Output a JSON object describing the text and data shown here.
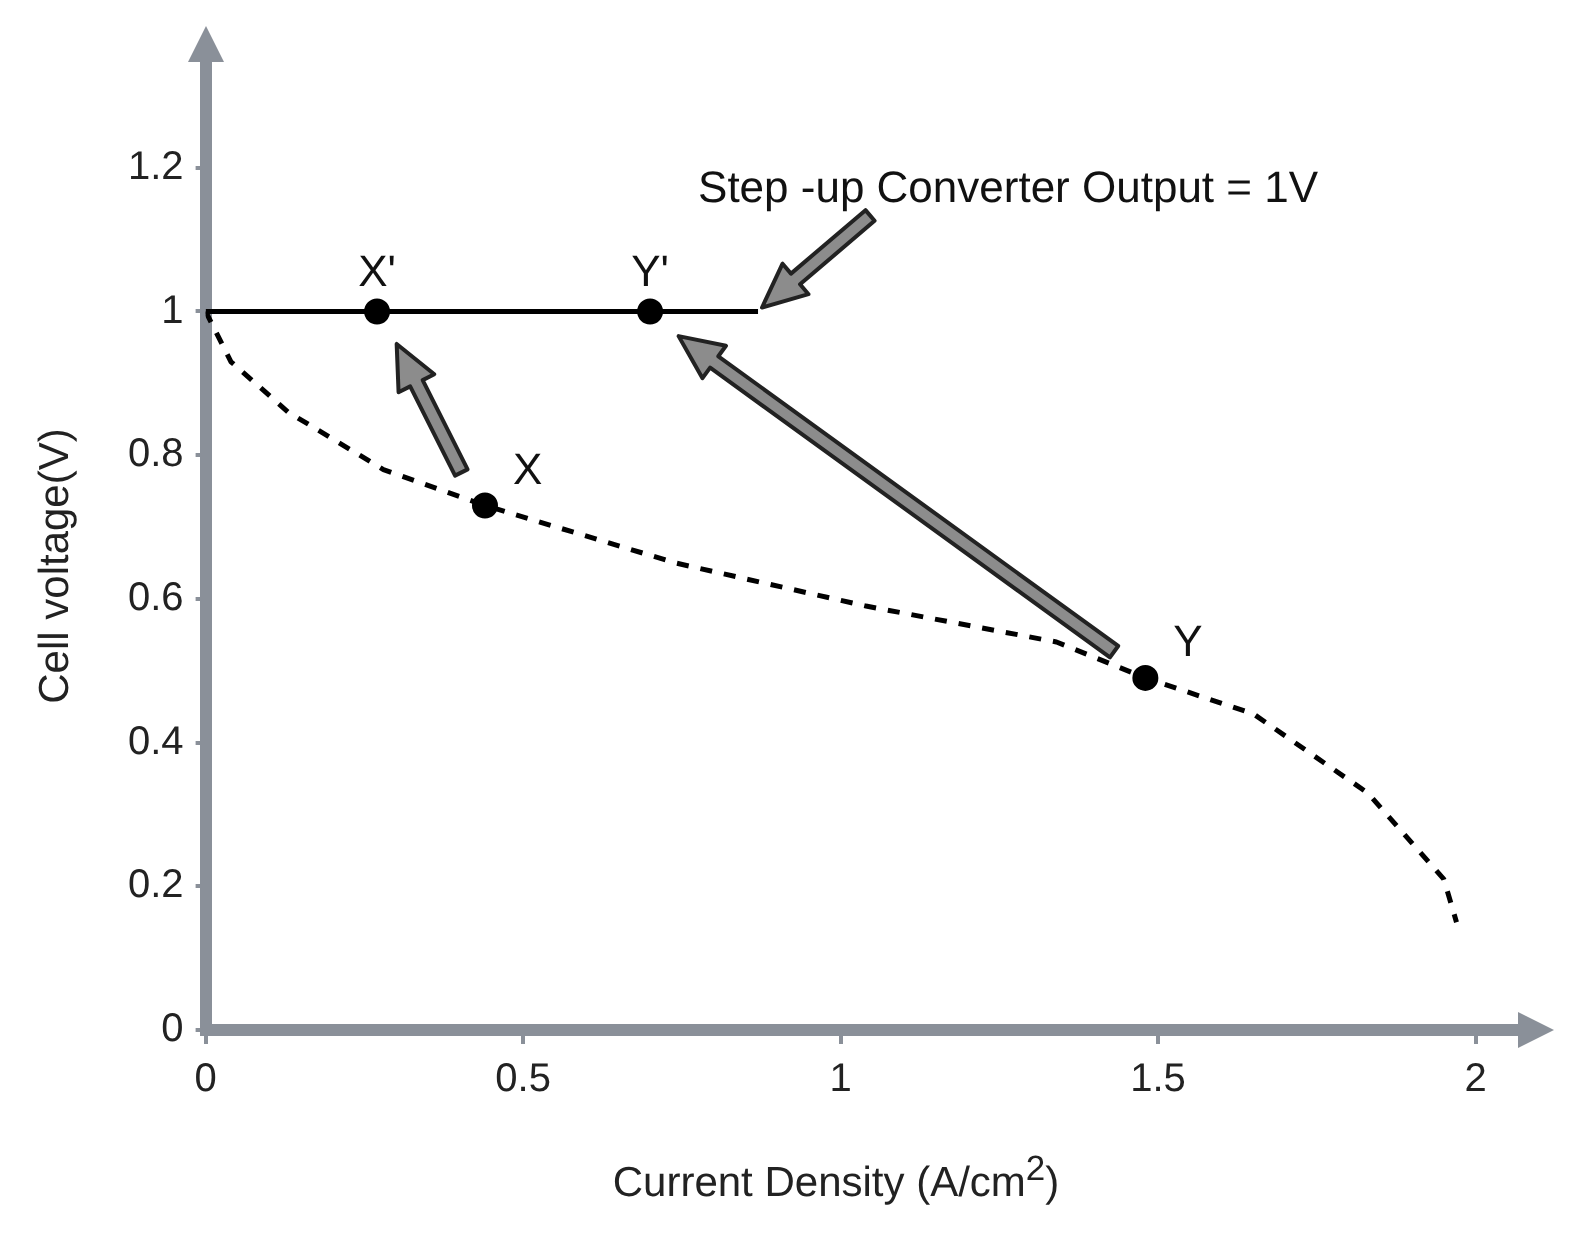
{
  "chart_data": {
    "type": "line",
    "xlabel": "Current Density (A/cm$^{2}$)",
    "ylabel": "Cell voltage(V)",
    "xlim": [
      0,
      2.07
    ],
    "ylim": [
      0,
      1.35
    ],
    "xticks": [
      0,
      0.5,
      1,
      1.5,
      2
    ],
    "yticks": [
      0,
      0.2,
      0.4,
      0.6,
      0.8,
      1,
      1.2
    ],
    "grid": false,
    "legend": false,
    "series": [
      {
        "type": "line",
        "line_style": "dashed",
        "marker": "none",
        "color": "#000000",
        "x": [
          0,
          0.04,
          0.13,
          0.28,
          0.44,
          0.74,
          1.04,
          1.34,
          1.48,
          1.65,
          1.83,
          1.95,
          1.97
        ],
        "values": [
          1.0,
          0.93,
          0.86,
          0.78,
          0.73,
          0.65,
          0.59,
          0.54,
          0.49,
          0.44,
          0.33,
          0.21,
          0.15
        ]
      },
      {
        "type": "line",
        "line_style": "solid",
        "marker": "none",
        "color": "#000000",
        "x": [
          0,
          0.87
        ],
        "values": [
          1,
          1
        ]
      },
      {
        "type": "scatter",
        "marker": "circle",
        "color": "#000000",
        "x": [
          0.44,
          1.48
        ],
        "values": [
          0.73,
          0.49
        ]
      },
      {
        "type": "scatter",
        "marker": "circle",
        "color": "#000000",
        "x": [
          0.27,
          0.7
        ],
        "values": [
          1,
          1
        ]
      }
    ],
    "annotations": [
      {
        "text": "X",
        "x": 0.44,
        "y": 0.73
      },
      {
        "text": "Y",
        "x": 1.48,
        "y": 0.49
      },
      {
        "text": "X'",
        "x": 0.27,
        "y": 1
      },
      {
        "text": "Y'",
        "x": 0.7,
        "y": 1
      },
      {
        "text": "Step -up Converter Output = 1V",
        "x": 0.87,
        "y": 1
      }
    ]
  }
}
